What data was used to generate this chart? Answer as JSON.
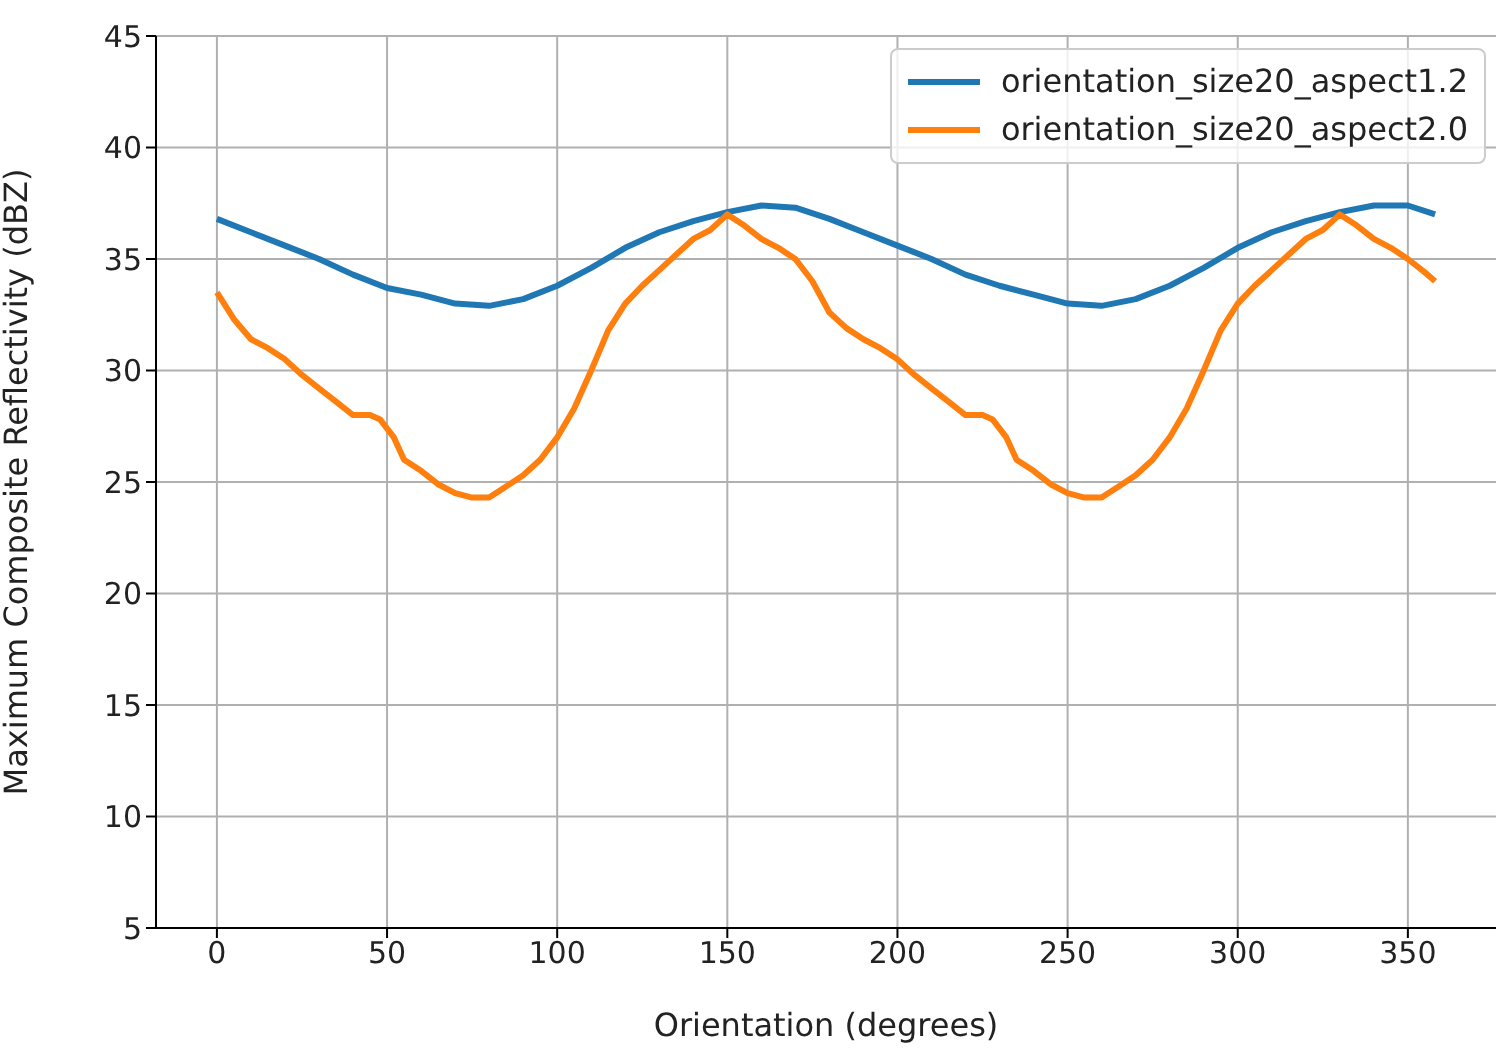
{
  "chart_data": {
    "type": "line",
    "xlabel": "Orientation (degrees)",
    "ylabel": "Maximum Composite Reflectivity (dBZ)",
    "xlim": [
      -17.9,
      375.9
    ],
    "xticks": [
      0,
      50,
      100,
      150,
      200,
      250,
      300,
      350
    ],
    "ylim": [
      5,
      45
    ],
    "yticks": [
      5,
      10,
      15,
      20,
      25,
      30,
      35,
      40,
      45
    ],
    "grid": true,
    "legend": "top right",
    "marker": "none",
    "line_style": "solid",
    "series": [
      {
        "name": "orientation_size20_aspect1.2",
        "color": "#1f77b4",
        "x": [
          0,
          10,
          20,
          30,
          40,
          50,
          60,
          70,
          80,
          90,
          100,
          110,
          120,
          130,
          140,
          150,
          160,
          170,
          180,
          190,
          200,
          210,
          220,
          230,
          240,
          250,
          260,
          270,
          280,
          290,
          300,
          310,
          320,
          330,
          340,
          350,
          358
        ],
        "values": [
          36.8,
          36.2,
          35.6,
          35.0,
          34.3,
          33.7,
          33.4,
          33.0,
          32.9,
          33.2,
          33.8,
          34.6,
          35.5,
          36.2,
          36.7,
          37.1,
          37.4,
          37.3,
          36.8,
          36.2,
          35.6,
          35.0,
          34.3,
          33.8,
          33.4,
          33.0,
          32.9,
          33.2,
          33.8,
          34.6,
          35.5,
          36.2,
          36.7,
          37.1,
          37.4,
          37.4,
          37.0
        ]
      },
      {
        "name": "orientation_size20_aspect2.0",
        "color": "#ff7f0e",
        "x": [
          0,
          5,
          10,
          15,
          20,
          25,
          30,
          35,
          40,
          45,
          48,
          52,
          55,
          60,
          65,
          70,
          75,
          80,
          85,
          90,
          95,
          100,
          105,
          110,
          115,
          120,
          125,
          130,
          135,
          140,
          145,
          150,
          155,
          160,
          165,
          170,
          175,
          180,
          185,
          190,
          195,
          200,
          205,
          210,
          215,
          220,
          225,
          228,
          232,
          235,
          240,
          245,
          250,
          255,
          260,
          265,
          270,
          275,
          280,
          285,
          290,
          295,
          300,
          305,
          310,
          315,
          320,
          325,
          330,
          335,
          340,
          345,
          350,
          355,
          358
        ],
        "values": [
          33.5,
          32.3,
          31.4,
          31.0,
          30.5,
          29.8,
          29.2,
          28.6,
          28.0,
          28.0,
          27.8,
          27.0,
          26.0,
          25.5,
          24.9,
          24.5,
          24.3,
          24.3,
          24.8,
          25.3,
          26.0,
          27.0,
          28.3,
          30.0,
          31.8,
          33.0,
          33.8,
          34.5,
          35.2,
          35.9,
          36.3,
          37.0,
          36.5,
          35.9,
          35.5,
          35.0,
          34.0,
          32.6,
          31.9,
          31.4,
          31.0,
          30.5,
          29.8,
          29.2,
          28.6,
          28.0,
          28.0,
          27.8,
          27.0,
          26.0,
          25.5,
          24.9,
          24.5,
          24.3,
          24.3,
          24.8,
          25.3,
          26.0,
          27.0,
          28.3,
          30.0,
          31.8,
          33.0,
          33.8,
          34.5,
          35.2,
          35.9,
          36.3,
          37.0,
          36.5,
          35.9,
          35.5,
          35.0,
          34.4,
          34.0
        ]
      }
    ]
  }
}
